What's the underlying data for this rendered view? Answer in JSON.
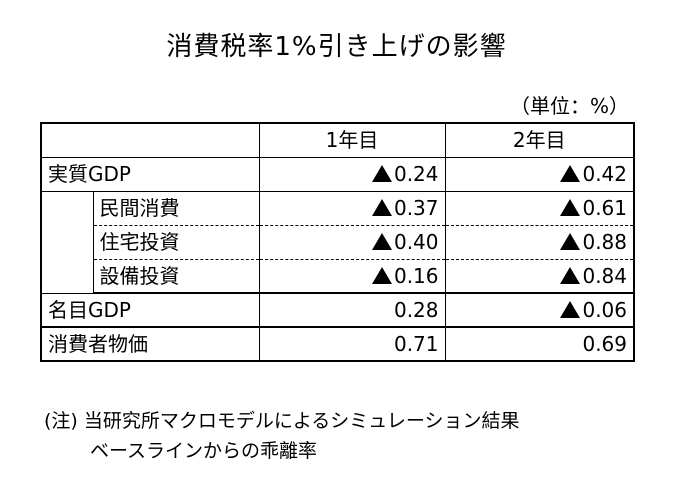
{
  "title": "消費税率1%引き上げの影響",
  "unit": "（単位：%）",
  "header": {
    "label": "",
    "year1": "1年目",
    "year2": "2年目"
  },
  "rows": [
    {
      "label": "実質GDP",
      "year1": "0.24",
      "year1_negative": true,
      "year2": "0.42",
      "year2_negative": true
    },
    {
      "label": "民間消費",
      "year1": "0.37",
      "year1_negative": true,
      "year2": "0.61",
      "year2_negative": true
    },
    {
      "label": "住宅投資",
      "year1": "0.40",
      "year1_negative": true,
      "year2": "0.88",
      "year2_negative": true
    },
    {
      "label": "設備投資",
      "year1": "0.16",
      "year1_negative": true,
      "year2": "0.84",
      "year2_negative": true
    },
    {
      "label": "名目GDP",
      "year1": "0.28",
      "year1_negative": false,
      "year2": "0.06",
      "year2_negative": true
    },
    {
      "label": "消費者物価",
      "year1": "0.71",
      "year1_negative": false,
      "year2": "0.69",
      "year2_negative": false
    }
  ],
  "note": {
    "line1": "(注) 当研究所マクロモデルによるシミュレーション結果",
    "line2": "ベースラインからの乖離率"
  },
  "icons": {
    "negative_marker": "black-up-triangle-icon"
  }
}
